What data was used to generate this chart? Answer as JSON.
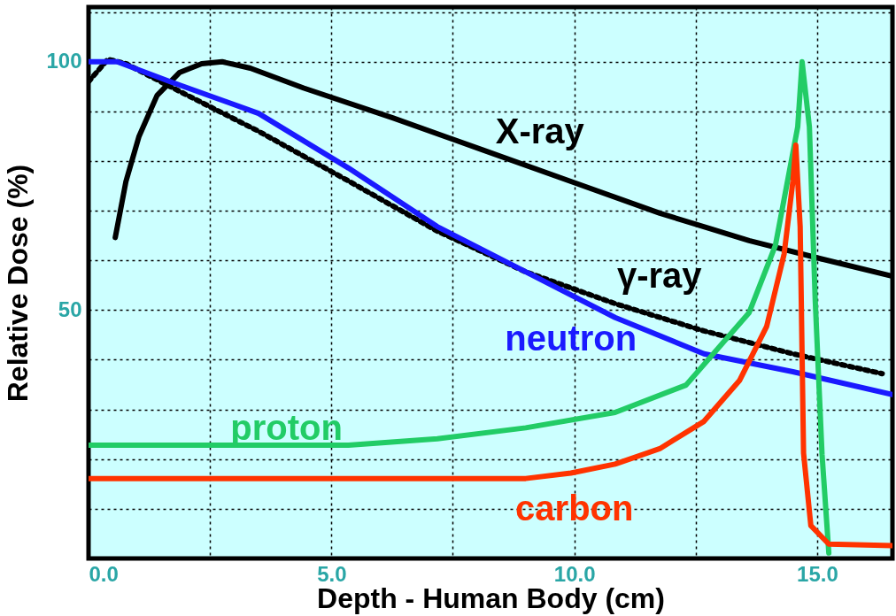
{
  "chart_data": {
    "type": "line",
    "xlabel": "Depth - Human Body (cm)",
    "ylabel": "Relative Dose (%)",
    "xlim": [
      0,
      16.55
    ],
    "ylim": [
      0,
      111
    ],
    "xticks": [
      {
        "value": 0,
        "label": "0.0"
      },
      {
        "value": 2.5,
        "label": null
      },
      {
        "value": 5,
        "label": "5.0"
      },
      {
        "value": 7.5,
        "label": null
      },
      {
        "value": 10,
        "label": "10.0"
      },
      {
        "value": 12.5,
        "label": null
      },
      {
        "value": 15,
        "label": "15.0"
      }
    ],
    "yticks": [
      {
        "value": 0,
        "label": null
      },
      {
        "value": 10,
        "label": null
      },
      {
        "value": 20,
        "label": null
      },
      {
        "value": 30,
        "label": null
      },
      {
        "value": 40,
        "label": null
      },
      50,
      {
        "value": 60,
        "label": null
      },
      {
        "value": 70,
        "label": null
      },
      {
        "value": 80,
        "label": null
      },
      {
        "value": 90,
        "label": null
      },
      100,
      {
        "value": 110,
        "label": null
      }
    ],
    "grid": true,
    "series": [
      {
        "name": "X-ray",
        "color": "#000000",
        "line_style": "solid",
        "x": [
          0.55,
          0.77,
          1.04,
          1.41,
          1.87,
          2.33,
          2.75,
          3.33,
          4.43,
          6.26,
          8.1,
          9.93,
          11.76,
          13.6,
          15.05,
          16.55
        ],
        "values": [
          64.6,
          75.9,
          85,
          93.2,
          97.8,
          99.6,
          100,
          98.7,
          94.7,
          88.7,
          82.3,
          75.9,
          69.5,
          64,
          60.4,
          56.8
        ]
      },
      {
        "name": "γ-ray",
        "color": "#000000",
        "line_style": "dotted",
        "x": [
          0,
          0.4,
          0.77,
          1.68,
          3.5,
          5.35,
          7.18,
          9,
          10.84,
          12.67,
          14.5,
          16.34
        ],
        "values": [
          96,
          100.5,
          99.6,
          95,
          86,
          76,
          65.9,
          57.7,
          51.3,
          45.8,
          41.2,
          37.2
        ]
      },
      {
        "name": "neutron",
        "color": "#1a1aff",
        "line_style": "solid",
        "x": [
          0,
          0.59,
          1.68,
          3.5,
          5.35,
          7.18,
          9,
          10.84,
          12.67,
          14.5,
          16.55
        ],
        "values": [
          100,
          100,
          96,
          89.6,
          78.6,
          66.8,
          57.7,
          48.5,
          41.2,
          37.6,
          33
        ]
      },
      {
        "name": "proton",
        "color": "#22cc66",
        "line_style": "solid",
        "x": [
          0,
          5.35,
          7.18,
          9,
          10.84,
          12.3,
          13.6,
          14.14,
          14.6,
          14.69,
          14.84,
          14.96,
          15.1,
          15.24
        ],
        "values": [
          22.8,
          22.8,
          24.1,
          26.3,
          29.4,
          34.9,
          49.5,
          63,
          86.9,
          100,
          86.9,
          52,
          21,
          1.1
        ]
      },
      {
        "name": "carbon",
        "color": "#ff3300",
        "line_style": "solid",
        "x": [
          0,
          9,
          9.93,
          10.84,
          11.76,
          12.67,
          13.4,
          13.96,
          14.32,
          14.5,
          14.56,
          14.65,
          14.72,
          14.87,
          15.24,
          16.55
        ],
        "values": [
          16.1,
          16.1,
          17.2,
          19,
          22.1,
          27.6,
          35.8,
          46.7,
          61.3,
          75.9,
          83.2,
          66.8,
          21.2,
          6.6,
          2.9,
          2.6
        ]
      }
    ]
  }
}
